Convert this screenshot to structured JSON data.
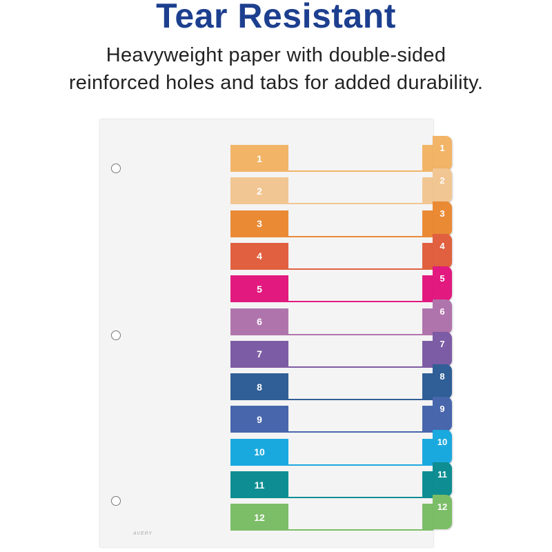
{
  "header": {
    "title": "Tear Resistant",
    "subtitle_line1": "Heavyweight paper with double-sided",
    "subtitle_line2": "reinforced holes and tabs for added durability."
  },
  "product": {
    "brand_mark": "AVERY",
    "tabs": [
      {
        "label": "1",
        "color": "#f2b467"
      },
      {
        "label": "2",
        "color": "#f2c692"
      },
      {
        "label": "3",
        "color": "#ea8a35"
      },
      {
        "label": "4",
        "color": "#e0603f"
      },
      {
        "label": "5",
        "color": "#e2197f"
      },
      {
        "label": "6",
        "color": "#b074ad"
      },
      {
        "label": "7",
        "color": "#7c5ca4"
      },
      {
        "label": "8",
        "color": "#305e96"
      },
      {
        "label": "9",
        "color": "#4766ac"
      },
      {
        "label": "10",
        "color": "#1aa9df"
      },
      {
        "label": "11",
        "color": "#0e8e92"
      },
      {
        "label": "12",
        "color": "#7cbd67"
      }
    ]
  }
}
